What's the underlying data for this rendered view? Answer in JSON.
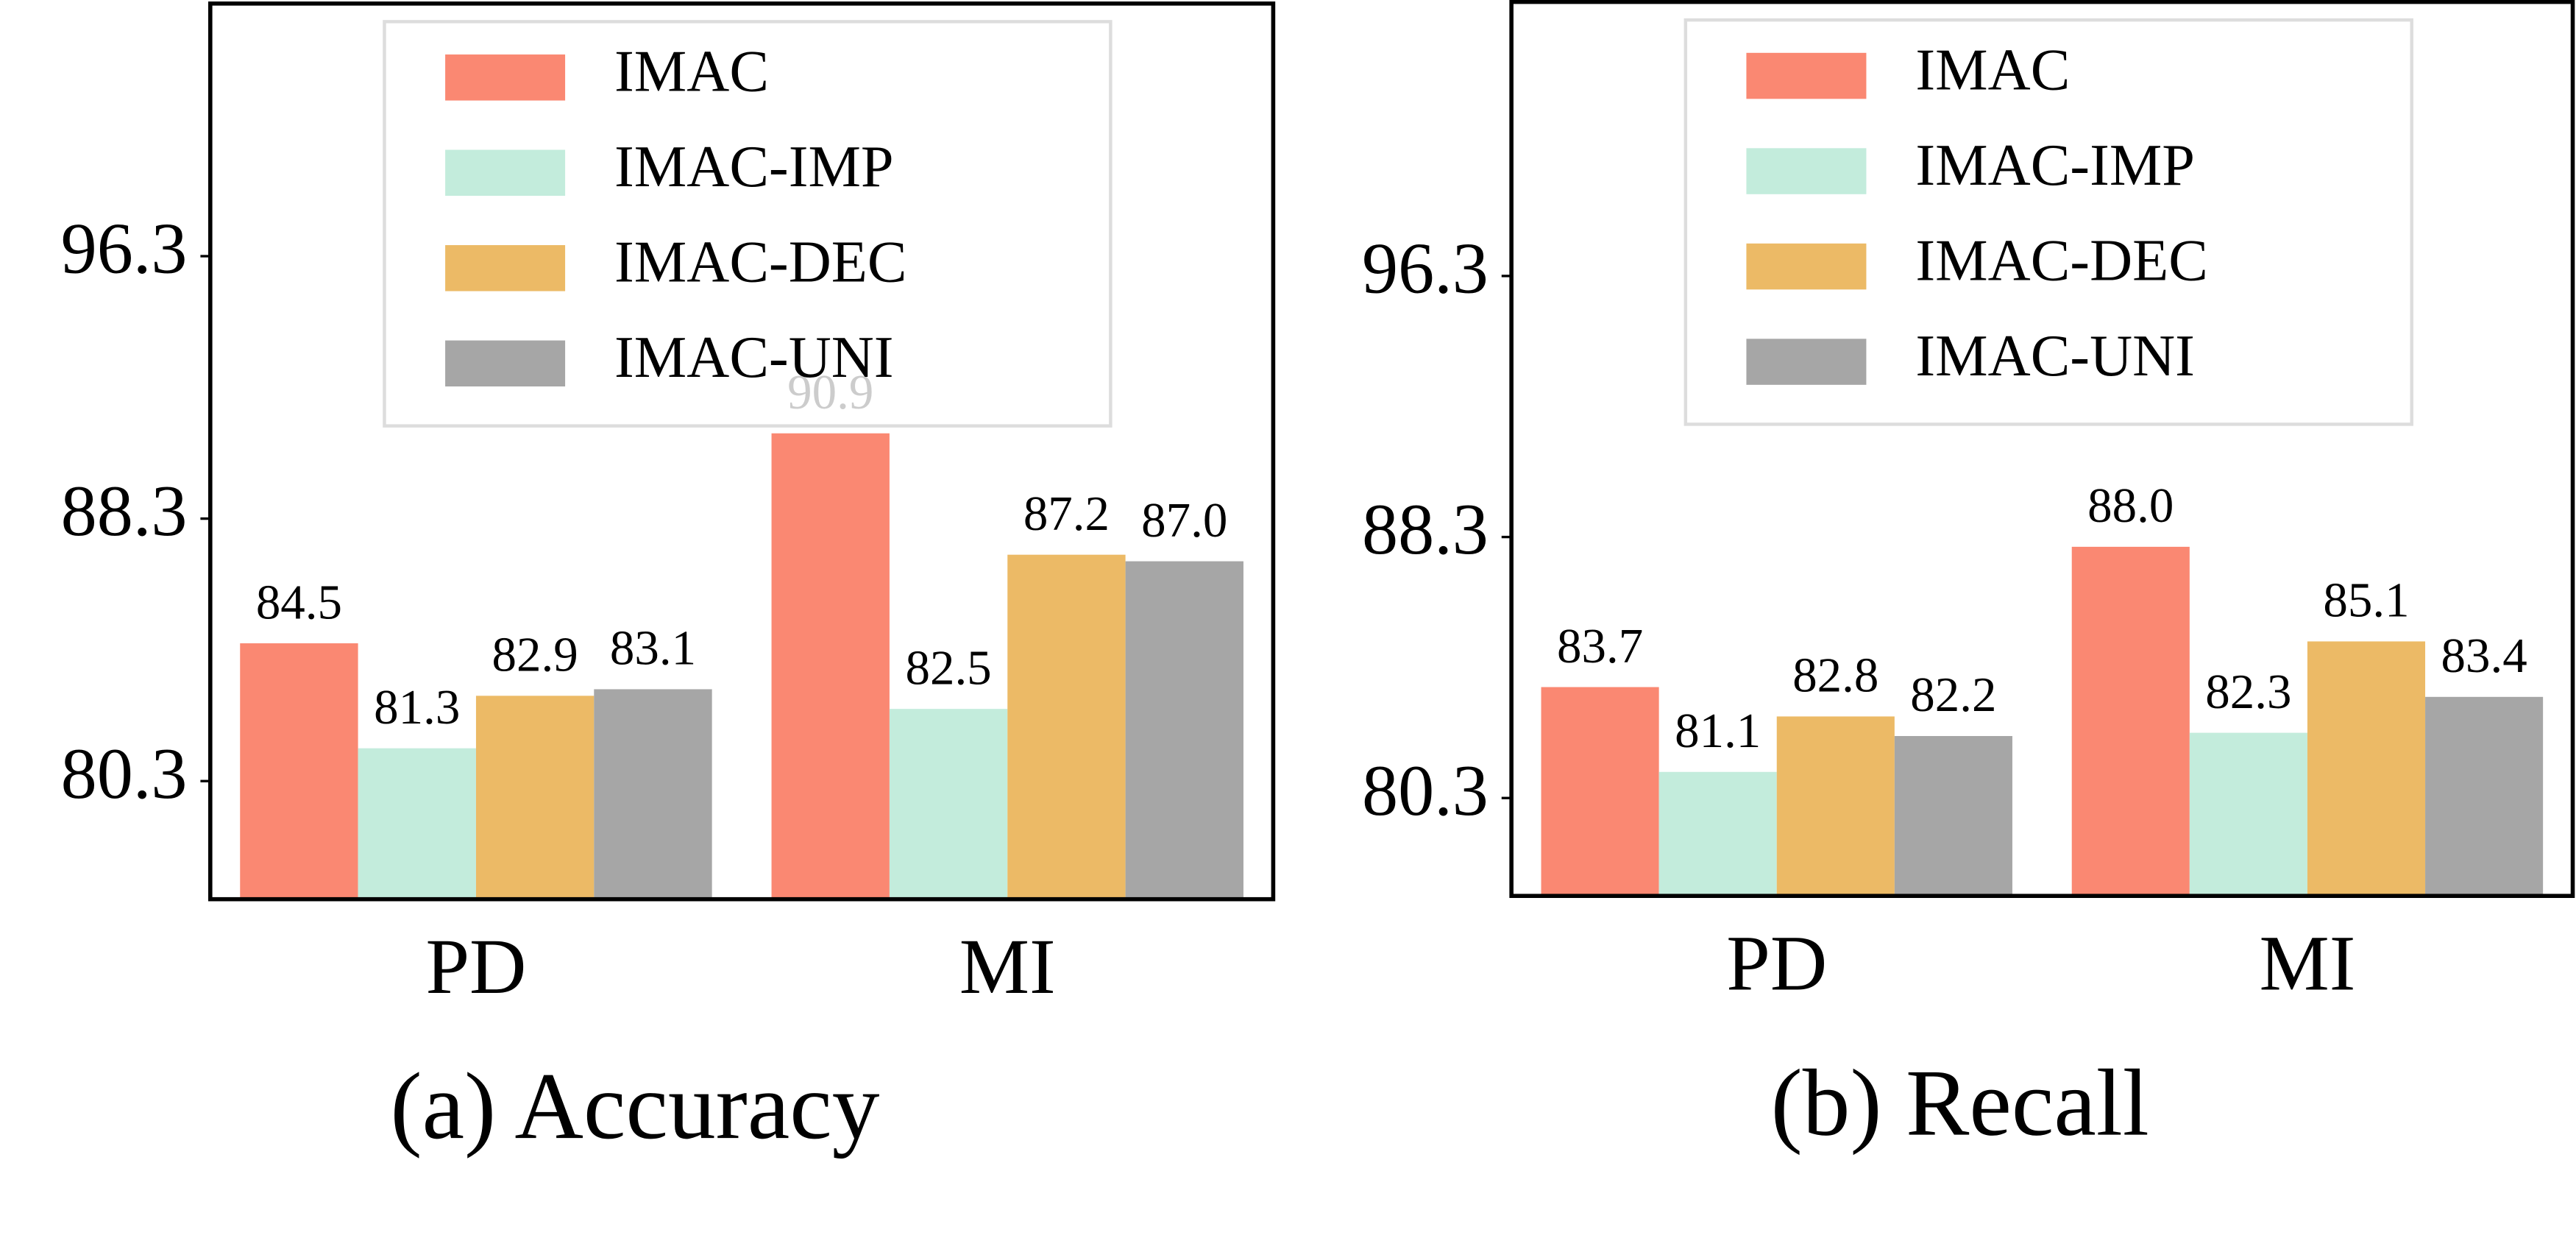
{
  "chart_data": [
    {
      "type": "bar",
      "title": "(a) Accuracy",
      "categories": [
        "PD",
        "MI"
      ],
      "ylim": [
        76.7,
        104
      ],
      "yticks": [
        80.3,
        88.3,
        96.3
      ],
      "legend": "upper center",
      "series": [
        {
          "name": "IMAC",
          "color": "#fa8872",
          "values": [
            84.5,
            90.9
          ],
          "value_labels": [
            "84.5",
            "90.9"
          ]
        },
        {
          "name": "IMAC-IMP",
          "color": "#c3ecdc",
          "values": [
            81.3,
            82.5
          ],
          "value_labels": [
            "81.3",
            "82.5"
          ]
        },
        {
          "name": "IMAC-DEC",
          "color": "#ecba66",
          "values": [
            82.9,
            87.2
          ],
          "value_labels": [
            "82.9",
            "87.2"
          ]
        },
        {
          "name": "IMAC-UNI",
          "color": "#a6a6a6",
          "values": [
            83.1,
            87.0
          ],
          "value_labels": [
            "83.1",
            "87.0"
          ]
        }
      ]
    },
    {
      "type": "bar",
      "title": "(b) Recall",
      "categories": [
        "PD",
        "MI"
      ],
      "ylim": [
        77.3,
        104.7
      ],
      "yticks": [
        80.3,
        88.3,
        96.3
      ],
      "legend": "upper center",
      "series": [
        {
          "name": "IMAC",
          "color": "#fa8872",
          "values": [
            83.7,
            88.0
          ],
          "value_labels": [
            "83.7",
            "88.0"
          ]
        },
        {
          "name": "IMAC-IMP",
          "color": "#c3ecdc",
          "values": [
            81.1,
            82.3
          ],
          "value_labels": [
            "81.1",
            "82.3"
          ]
        },
        {
          "name": "IMAC-DEC",
          "color": "#ecba66",
          "values": [
            82.8,
            85.1
          ],
          "value_labels": [
            "82.8",
            "85.1"
          ]
        },
        {
          "name": "IMAC-UNI",
          "color": "#a6a6a6",
          "values": [
            82.2,
            83.4
          ],
          "value_labels": [
            "82.2",
            "83.4"
          ]
        }
      ]
    }
  ]
}
